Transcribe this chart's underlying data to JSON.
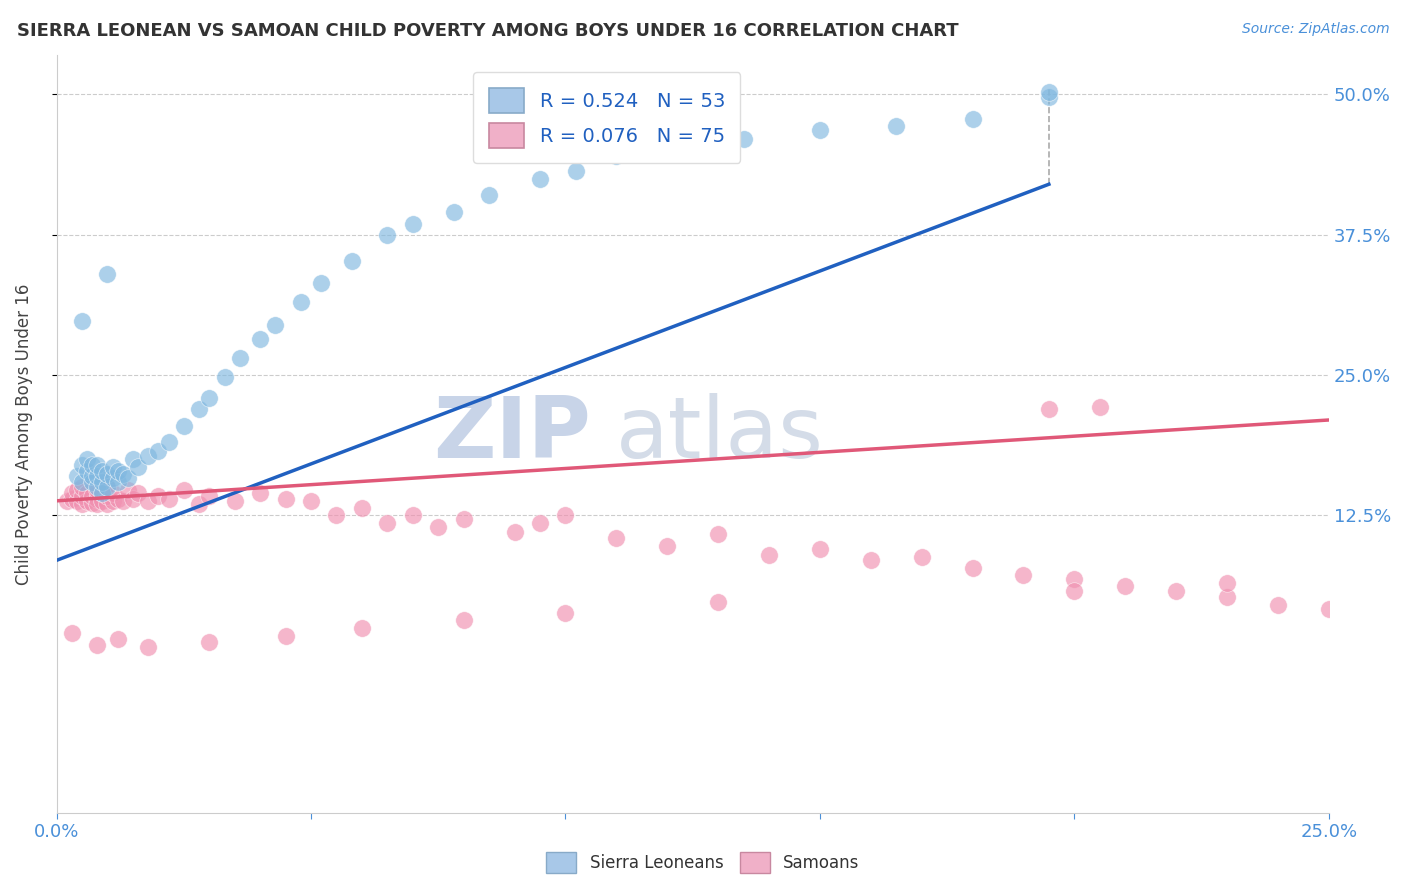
{
  "title": "SIERRA LEONEAN VS SAMOAN CHILD POVERTY AMONG BOYS UNDER 16 CORRELATION CHART",
  "source": "Source: ZipAtlas.com",
  "ylabel": "Child Poverty Among Boys Under 16",
  "xlim": [
    0.0,
    0.25
  ],
  "ylim": [
    -0.14,
    0.535
  ],
  "ytick_positions": [
    0.125,
    0.25,
    0.375,
    0.5
  ],
  "ytick_labels": [
    "12.5%",
    "25.0%",
    "37.5%",
    "50.0%"
  ],
  "legend_r1": "R = 0.524   N = 53",
  "legend_r2": "R = 0.076   N = 75",
  "legend_color1": "#a8c8e8",
  "legend_color2": "#f0b0c8",
  "scatter_color_blue": "#80b8e0",
  "scatter_color_pink": "#f090b0",
  "line_color_blue": "#2060c0",
  "line_color_pink": "#e05878",
  "watermark_color": "#ccd6ea",
  "blue_regression": [
    0.0,
    0.085,
    0.195,
    0.42
  ],
  "blue_dashed_ext": [
    0.0,
    0.085,
    0.195,
    0.505
  ],
  "pink_regression": [
    0.0,
    0.138,
    0.25,
    0.21
  ],
  "blue_scatter_x": [
    0.004,
    0.005,
    0.005,
    0.006,
    0.006,
    0.007,
    0.007,
    0.007,
    0.008,
    0.008,
    0.008,
    0.009,
    0.009,
    0.009,
    0.01,
    0.01,
    0.011,
    0.011,
    0.012,
    0.012,
    0.013,
    0.014,
    0.015,
    0.016,
    0.018,
    0.02,
    0.022,
    0.025,
    0.028,
    0.03,
    0.033,
    0.036,
    0.04,
    0.043,
    0.048,
    0.052,
    0.058,
    0.065,
    0.07,
    0.078,
    0.085,
    0.095,
    0.102,
    0.11,
    0.12,
    0.135,
    0.15,
    0.165,
    0.18,
    0.195,
    0.195,
    0.005,
    0.01
  ],
  "blue_scatter_y": [
    0.16,
    0.155,
    0.17,
    0.165,
    0.175,
    0.155,
    0.16,
    0.17,
    0.15,
    0.16,
    0.17,
    0.145,
    0.155,
    0.165,
    0.15,
    0.162,
    0.158,
    0.168,
    0.155,
    0.165,
    0.162,
    0.158,
    0.175,
    0.168,
    0.178,
    0.182,
    0.19,
    0.205,
    0.22,
    0.23,
    0.248,
    0.265,
    0.282,
    0.295,
    0.315,
    0.332,
    0.352,
    0.375,
    0.385,
    0.395,
    0.41,
    0.425,
    0.432,
    0.445,
    0.452,
    0.46,
    0.468,
    0.472,
    0.478,
    0.498,
    0.502,
    0.298,
    0.34
  ],
  "pink_scatter_x": [
    0.002,
    0.003,
    0.003,
    0.004,
    0.004,
    0.005,
    0.005,
    0.005,
    0.006,
    0.006,
    0.007,
    0.007,
    0.008,
    0.008,
    0.008,
    0.009,
    0.009,
    0.01,
    0.01,
    0.01,
    0.011,
    0.011,
    0.012,
    0.013,
    0.014,
    0.015,
    0.016,
    0.018,
    0.02,
    0.022,
    0.025,
    0.028,
    0.03,
    0.035,
    0.04,
    0.045,
    0.05,
    0.055,
    0.06,
    0.065,
    0.07,
    0.075,
    0.08,
    0.09,
    0.095,
    0.1,
    0.11,
    0.12,
    0.13,
    0.14,
    0.15,
    0.16,
    0.17,
    0.18,
    0.19,
    0.2,
    0.21,
    0.22,
    0.23,
    0.24,
    0.25,
    0.195,
    0.205,
    0.003,
    0.008,
    0.012,
    0.018,
    0.03,
    0.045,
    0.06,
    0.08,
    0.1,
    0.13,
    0.2,
    0.23
  ],
  "pink_scatter_y": [
    0.138,
    0.14,
    0.145,
    0.138,
    0.148,
    0.135,
    0.142,
    0.15,
    0.138,
    0.145,
    0.136,
    0.142,
    0.14,
    0.135,
    0.148,
    0.138,
    0.145,
    0.135,
    0.142,
    0.15,
    0.138,
    0.145,
    0.14,
    0.138,
    0.148,
    0.14,
    0.145,
    0.138,
    0.142,
    0.14,
    0.148,
    0.135,
    0.142,
    0.138,
    0.145,
    0.14,
    0.138,
    0.125,
    0.132,
    0.118,
    0.125,
    0.115,
    0.122,
    0.11,
    0.118,
    0.125,
    0.105,
    0.098,
    0.108,
    0.09,
    0.095,
    0.085,
    0.088,
    0.078,
    0.072,
    0.068,
    0.062,
    0.058,
    0.052,
    0.045,
    0.042,
    0.22,
    0.222,
    0.02,
    0.01,
    0.015,
    0.008,
    0.012,
    0.018,
    0.025,
    0.032,
    0.038,
    0.048,
    0.058,
    0.065
  ]
}
